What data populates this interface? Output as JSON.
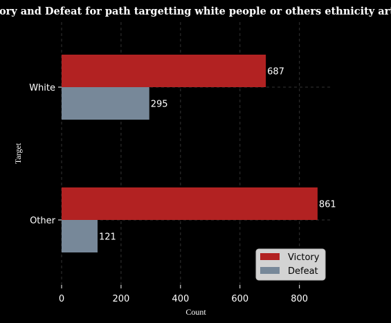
{
  "chart_data": {
    "type": "bar",
    "orientation": "horizontal",
    "title": "Victory and Defeat for path targetting white people or others ethnicity article",
    "xlabel": "Count",
    "ylabel": "Target",
    "categories": [
      "White",
      "Other"
    ],
    "series": [
      {
        "name": "Victory",
        "values": [
          687,
          861
        ],
        "color": "#b22222"
      },
      {
        "name": "Defeat",
        "values": [
          295,
          121
        ],
        "color": "#778899"
      }
    ],
    "xlim": [
      0,
      900
    ],
    "xticks": [
      0,
      200,
      400,
      600,
      800
    ],
    "grid": true,
    "legend_position": "bottom-right",
    "background": "#000000"
  }
}
